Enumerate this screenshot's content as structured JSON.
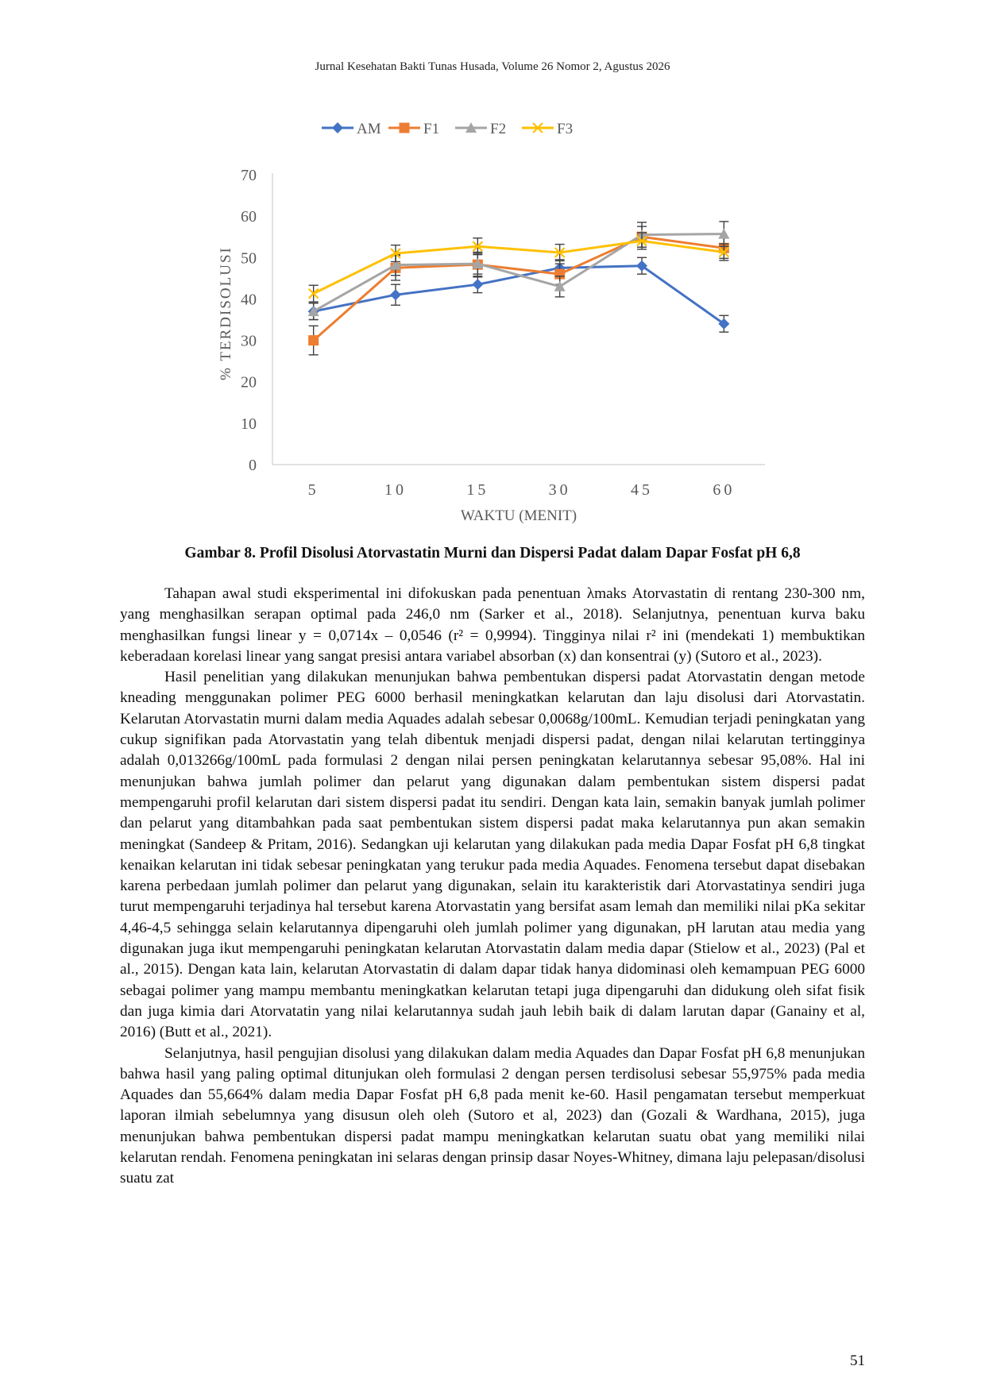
{
  "header": {
    "journal": "Jurnal Kesehatan Bakti Tunas Husada, Volume 26 Nomor 2, Agustus 2026"
  },
  "figure": {
    "caption": "Gambar 8. Profil Disolusi Atorvastatin Murni dan Dispersi Padat dalam Dapar Fosfat pH 6,8"
  },
  "chart_data": {
    "type": "line",
    "xlabel": "WAKTU (MENIT)",
    "ylabel": "% TERDISOLUSI",
    "categories": [
      "5",
      "10",
      "15",
      "30",
      "45",
      "60"
    ],
    "ylim": [
      0,
      70
    ],
    "yticks": [
      "0",
      "10",
      "20",
      "30",
      "40",
      "50",
      "60",
      "70"
    ],
    "grid": false,
    "legend": "top",
    "error_bars": true,
    "series": [
      {
        "name": "AM",
        "color": "#4472C4",
        "marker": "diamond",
        "values": [
          37,
          41,
          43.5,
          47.5,
          48,
          34
        ],
        "errors": [
          2,
          2.5,
          2,
          2,
          2,
          2
        ]
      },
      {
        "name": "F1",
        "color": "#ED7D31",
        "marker": "square",
        "values": [
          30,
          47.5,
          48.3,
          46,
          55,
          52.3
        ],
        "errors": [
          3.5,
          3,
          3,
          2.5,
          2.5,
          2.5
        ]
      },
      {
        "name": "F2",
        "color": "#A5A5A5",
        "marker": "triangle",
        "values": [
          37,
          48.2,
          48.5,
          43,
          55.5,
          55.7
        ],
        "errors": [
          2,
          2.5,
          2.5,
          2.5,
          3,
          3
        ]
      },
      {
        "name": "F3",
        "color": "#FFC000",
        "marker": "x",
        "values": [
          41.3,
          51,
          52.7,
          51.2,
          54,
          51.3
        ],
        "errors": [
          2,
          2,
          2,
          2,
          2,
          2
        ]
      }
    ]
  },
  "paragraphs": [
    "Tahapan awal studi eksperimental ini difokuskan pada penentuan λmaks Atorvastatin di rentang 230-300 nm, yang menghasilkan serapan optimal pada 246,0 nm (Sarker et al., 2018). Selanjutnya, penentuan kurva baku menghasilkan fungsi linear y = 0,0714x – 0,0546 (r² = 0,9994). Tingginya nilai r² ini (mendekati 1) membuktikan keberadaan korelasi linear yang sangat presisi antara variabel absorban (x) dan konsentrai (y) (Sutoro et al., 2023).",
    "Hasil penelitian yang dilakukan menunjukan bahwa pembentukan dispersi padat Atorvastatin dengan metode kneading menggunakan polimer PEG 6000 berhasil meningkatkan kelarutan dan laju disolusi dari Atorvastatin. Kelarutan Atorvastatin murni dalam media Aquades adalah sebesar 0,0068g/100mL. Kemudian terjadi peningkatan yang cukup signifikan pada Atorvastatin yang telah dibentuk menjadi dispersi padat, dengan nilai kelarutan tertingginya adalah 0,013266g/100mL pada formulasi 2 dengan nilai persen peningkatan kelarutannya sebesar 95,08%.  Hal ini menunjukan bahwa jumlah polimer dan pelarut yang digunakan dalam pembentukan sistem dispersi padat mempengaruhi profil kelarutan dari sistem dispersi padat itu sendiri. Dengan kata lain, semakin banyak jumlah polimer dan pelarut yang ditambahkan pada saat pembentukan sistem dispersi padat maka kelarutannya pun akan semakin meningkat (Sandeep & Pritam, 2016). Sedangkan uji kelarutan yang dilakukan pada media Dapar Fosfat  pH 6,8 tingkat kenaikan kelarutan ini tidak sebesar peningkatan yang terukur pada media Aquades. Fenomena tersebut dapat disebakan karena perbedaan jumlah polimer dan pelarut yang digunakan, selain itu karakteristik dari Atorvastatinya sendiri juga turut mempengaruhi terjadinya hal tersebut karena Atorvastatin yang bersifat asam lemah dan memiliki nilai pKa sekitar 4,46-4,5 sehingga selain kelarutannya dipengaruhi oleh jumlah polimer yang digunakan, pH larutan atau media yang digunakan juga ikut mempengaruhi peningkatan kelarutan Atorvastatin dalam media dapar (Stielow et al., 2023) (Pal et al., 2015). Dengan kata lain, kelarutan Atorvastatin di dalam dapar tidak hanya didominasi oleh kemampuan PEG 6000 sebagai polimer yang mampu membantu meningkatkan kelarutan tetapi juga dipengaruhi dan didukung oleh sifat fisik dan juga kimia dari Atorvatatin yang nilai kelarutannya sudah jauh lebih baik di dalam larutan dapar (Ganainy et al, 2016) (Butt et al., 2021).",
    "Selanjutnya, hasil pengujian disolusi yang dilakukan dalam media Aquades dan Dapar Fosfat pH 6,8 menunjukan bahwa hasil yang paling optimal ditunjukan oleh formulasi 2 dengan persen terdisolusi sebesar 55,975% pada media Aquades dan 55,664% dalam media Dapar Fosfat pH 6,8 pada menit ke-60. Hasil pengamatan tersebut memperkuat laporan ilmiah sebelumnya yang disusun oleh oleh (Sutoro et al, 2023) dan (Gozali & Wardhana, 2015), juga menunjukan bahwa pembentukan dispersi padat mampu meningkatkan kelarutan suatu obat yang memiliki nilai kelarutan rendah. Fenomena peningkatan ini selaras dengan prinsip dasar Noyes-Whitney, dimana laju pelepasan/disolusi suatu zat"
  ],
  "page": {
    "number": "51"
  }
}
